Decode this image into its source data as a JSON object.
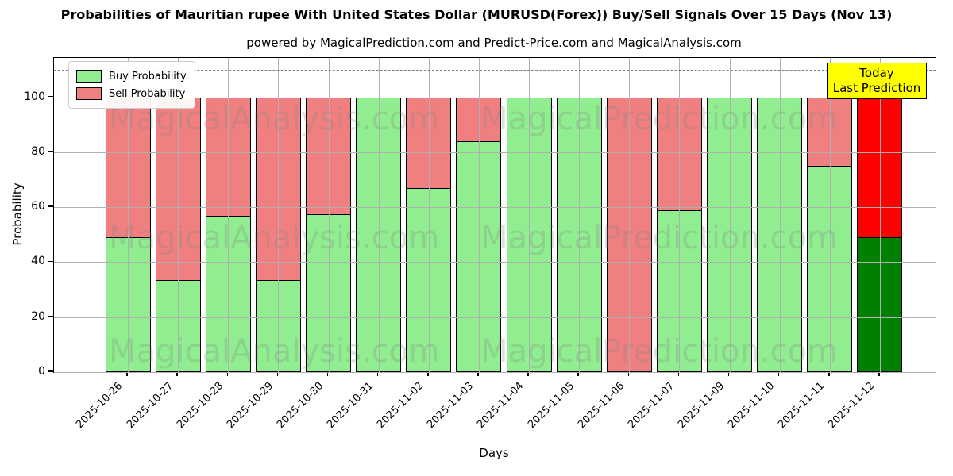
{
  "title": "Probabilities of Mauritian rupee With United States Dollar (MURUSD(Forex)) Buy/Sell Signals Over 15 Days (Nov 13)",
  "subtitle": "powered by MagicalPrediction.com and Predict-Price.com and MagicalAnalysis.com",
  "legend": {
    "buy_label": "Buy Probability",
    "sell_label": "Sell Probability"
  },
  "annotation": {
    "line1": "Today",
    "line2": "Last Prediction",
    "bg_color": "#ffff00"
  },
  "watermarks": {
    "left_text": "MagicalAnalysis.com",
    "right_text": "MagicalPrediction.com"
  },
  "colors": {
    "buy": "#90ee90",
    "sell": "#f08080",
    "today_buy": "#008000",
    "today_sell": "#ff0000",
    "grid": "#b0b0b0",
    "reference_line": "#7f7f7f"
  },
  "chart_data": {
    "type": "bar",
    "stacked": true,
    "title": "Probabilities of Mauritian rupee With United States Dollar (MURUSD(Forex)) Buy/Sell Signals Over 15 Days (Nov 13)",
    "xlabel": "Days",
    "ylabel": "Probability",
    "ylim": [
      0,
      114.3
    ],
    "yticks": [
      0,
      20,
      40,
      60,
      80,
      100
    ],
    "reference_line_y": 110,
    "grid": true,
    "legend_position": "upper left",
    "categories": [
      "2025-10-26",
      "2025-10-27",
      "2025-10-28",
      "2025-10-29",
      "2025-10-30",
      "2025-10-31",
      "2025-11-02",
      "2025-11-03",
      "2025-11-04",
      "2025-11-05",
      "2025-11-06",
      "2025-11-07",
      "2025-11-09",
      "2025-11-10",
      "2025-11-11",
      "2025-11-12"
    ],
    "series": [
      {
        "name": "Buy Probability",
        "color": "#90ee90",
        "today_color": "#008000",
        "values": [
          49,
          33.5,
          57,
          33.5,
          57.5,
          100,
          67,
          84,
          100,
          100,
          0,
          59,
          100,
          100,
          75,
          49
        ]
      },
      {
        "name": "Sell Probability",
        "color": "#f08080",
        "today_color": "#ff0000",
        "values": [
          51,
          66.5,
          43,
          66.5,
          42.5,
          0,
          33,
          16,
          0,
          0,
          100,
          41,
          0,
          0,
          25,
          51
        ]
      }
    ],
    "today_index": 15
  }
}
